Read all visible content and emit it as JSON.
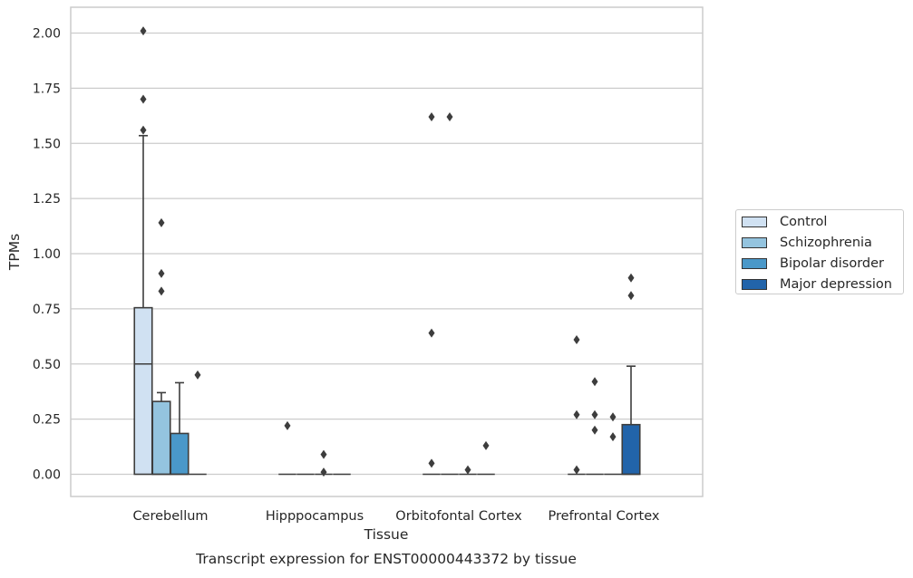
{
  "chart_data": {
    "type": "box",
    "title": "",
    "caption": "Transcript expression for ENST00000443372 by tissue",
    "xlabel": "Tissue",
    "ylabel": "TPMs",
    "ylim": [
      -0.1,
      2.11
    ],
    "yticks": [
      "0.00",
      "0.25",
      "0.50",
      "0.75",
      "1.00",
      "1.25",
      "1.50",
      "1.75",
      "2.00"
    ],
    "ytick_values": [
      0,
      0.25,
      0.5,
      0.75,
      1.0,
      1.25,
      1.5,
      1.75,
      2.0
    ],
    "grid": "horizontal",
    "legend_position": "right-outside",
    "categories": [
      "Cerebellum",
      "Hipppocampus",
      "Orbitofontal Cortex",
      "Prefrontal Cortex"
    ],
    "series": [
      {
        "name": "Control",
        "color": "#d0e1f2",
        "boxes": [
          {
            "q1": 0,
            "median": 0.5,
            "q3": 0.755,
            "whisker_low": 0,
            "whisker_high": 1.535,
            "outliers": [
              1.7,
              1.56,
              2.01
            ]
          },
          {
            "q1": 0,
            "median": 0,
            "q3": 0,
            "whisker_low": 0,
            "whisker_high": 0,
            "outliers": [
              0.22
            ]
          },
          {
            "q1": 0,
            "median": 0,
            "q3": 0,
            "whisker_low": 0,
            "whisker_high": 0,
            "outliers": [
              1.62,
              0.64,
              0.05
            ]
          },
          {
            "q1": 0,
            "median": 0,
            "q3": 0,
            "whisker_low": 0,
            "whisker_high": 0,
            "outliers": [
              0.61,
              0.27,
              0.02
            ]
          }
        ]
      },
      {
        "name": "Schizophrenia",
        "color": "#94c4df",
        "boxes": [
          {
            "q1": 0,
            "median": 0,
            "q3": 0.33,
            "whisker_low": 0,
            "whisker_high": 0.37,
            "outliers": [
              1.14,
              0.91,
              0.83
            ]
          },
          {
            "q1": 0,
            "median": 0,
            "q3": 0,
            "whisker_low": 0,
            "whisker_high": 0,
            "outliers": []
          },
          {
            "q1": 0,
            "median": 0,
            "q3": 0,
            "whisker_low": 0,
            "whisker_high": 0,
            "outliers": [
              1.62
            ]
          },
          {
            "q1": 0,
            "median": 0,
            "q3": 0,
            "whisker_low": 0,
            "whisker_high": 0,
            "outliers": [
              0.42,
              0.27,
              0.2
            ]
          }
        ]
      },
      {
        "name": "Bipolar disorder",
        "color": "#4a98c9",
        "boxes": [
          {
            "q1": 0,
            "median": 0,
            "q3": 0.185,
            "whisker_low": 0,
            "whisker_high": 0.415,
            "outliers": []
          },
          {
            "q1": 0,
            "median": 0,
            "q3": 0,
            "whisker_low": 0,
            "whisker_high": 0,
            "outliers": [
              0.09,
              0.01
            ]
          },
          {
            "q1": 0,
            "median": 0,
            "q3": 0,
            "whisker_low": 0,
            "whisker_high": 0,
            "outliers": [
              0.02
            ]
          },
          {
            "q1": 0,
            "median": 0,
            "q3": 0,
            "whisker_low": 0,
            "whisker_high": 0,
            "outliers": [
              0.26,
              0.17
            ]
          }
        ]
      },
      {
        "name": "Major depression",
        "color": "#2264aa",
        "boxes": [
          {
            "q1": 0,
            "median": 0,
            "q3": 0,
            "whisker_low": 0,
            "whisker_high": 0,
            "outliers": [
              0.45
            ]
          },
          {
            "q1": 0,
            "median": 0,
            "q3": 0,
            "whisker_low": 0,
            "whisker_high": 0,
            "outliers": []
          },
          {
            "q1": 0,
            "median": 0,
            "q3": 0,
            "whisker_low": 0,
            "whisker_high": 0,
            "outliers": [
              0.13
            ]
          },
          {
            "q1": 0,
            "median": 0,
            "q3": 0.225,
            "whisker_low": 0,
            "whisker_high": 0.49,
            "outliers": [
              0.89,
              0.81
            ]
          }
        ]
      }
    ]
  }
}
